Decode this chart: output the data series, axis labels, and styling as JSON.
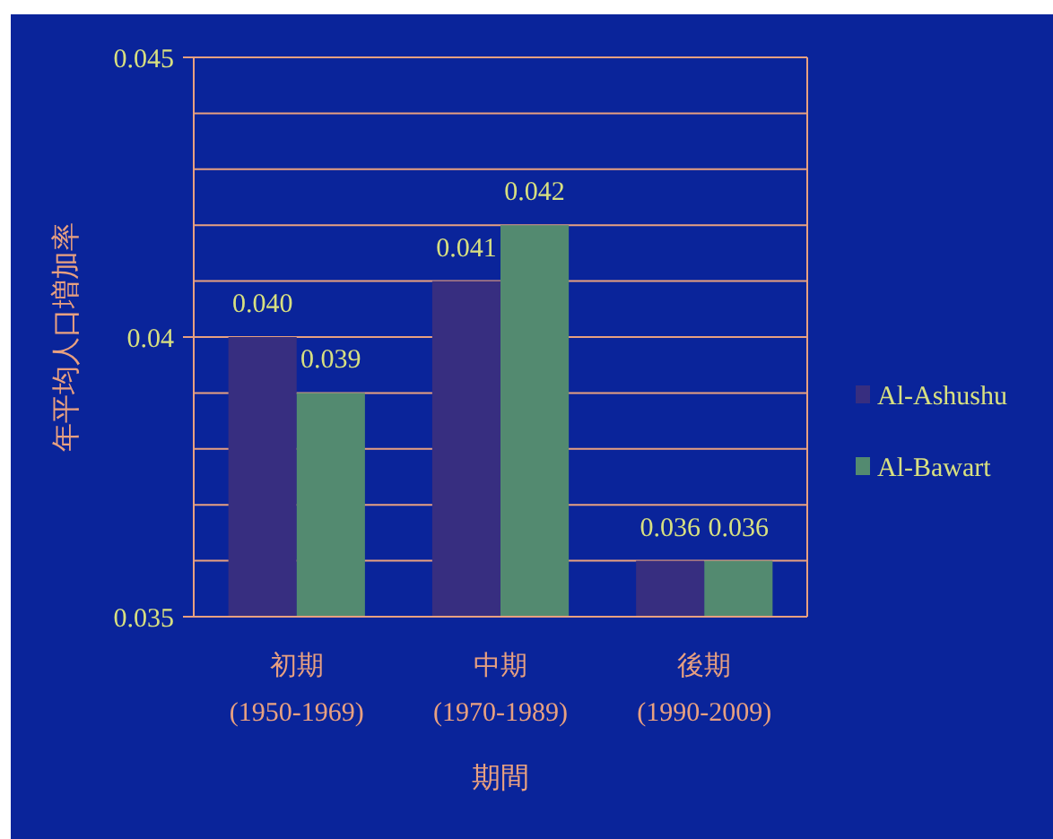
{
  "chart_data": {
    "type": "bar",
    "ylabel": "年平均人口増加率",
    "xlabel": "期間",
    "categories": [
      "初期\n(1950-1969)",
      "中期\n(1970-1989)",
      "後期\n(1990-2009)"
    ],
    "series": [
      {
        "name": "Al-Ashushu",
        "color": "#372e80",
        "values": [
          0.04,
          0.041,
          0.036
        ],
        "value_labels": [
          "0.040",
          "0.041",
          "0.036"
        ]
      },
      {
        "name": "Al-Bawart",
        "color": "#538a70",
        "values": [
          0.039,
          0.042,
          0.036
        ],
        "value_labels": [
          "0.039",
          "0.042",
          "0.036"
        ]
      }
    ],
    "ylim": [
      0.035,
      0.045
    ],
    "yticks": [
      0.035,
      {
        "value": 0.036,
        "label": null
      },
      {
        "value": 0.037,
        "label": null
      },
      {
        "value": 0.038,
        "label": null
      },
      {
        "value": 0.039,
        "label": null
      },
      0.04,
      {
        "value": 0.041,
        "label": null
      },
      {
        "value": 0.042,
        "label": null
      },
      {
        "value": 0.043,
        "label": null
      },
      {
        "value": 0.044,
        "label": null
      },
      0.045
    ],
    "grid": "y",
    "legend": "right"
  }
}
